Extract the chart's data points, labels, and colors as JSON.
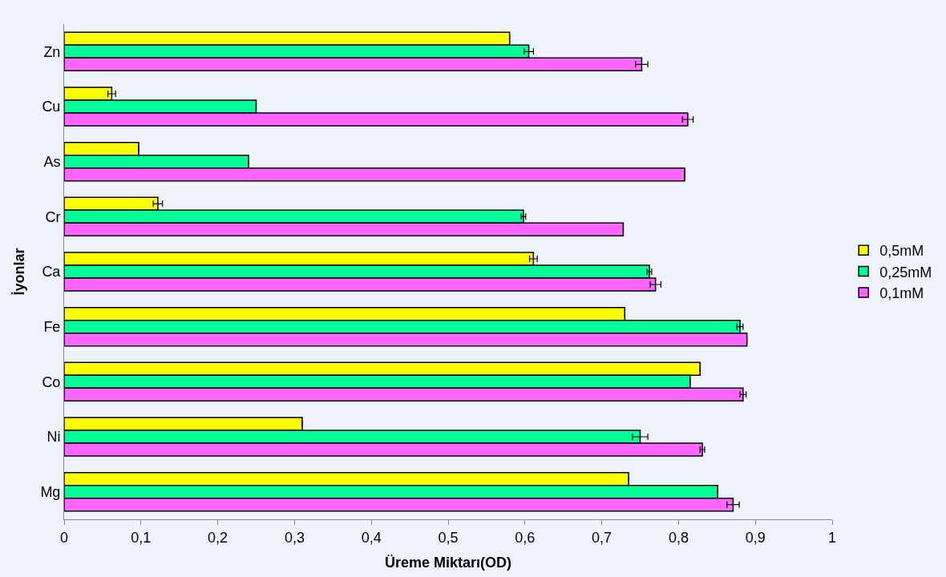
{
  "chart_data": {
    "type": "bar",
    "orientation": "horizontal",
    "xlabel": "Üreme Miktarı(OD)",
    "ylabel": "İyonlar",
    "categories": [
      "Zn",
      "Cu",
      "As",
      "Cr",
      "Ca",
      "Fe",
      "Co",
      "Ni",
      "Mg"
    ],
    "series": [
      {
        "name": "0,5mM",
        "color": "#ffff00",
        "values": [
          0.58,
          0.062,
          0.097,
          0.122,
          0.611,
          0.73,
          0.828,
          0.31,
          0.735
        ],
        "errors": [
          null,
          0.005,
          null,
          0.006,
          0.005,
          null,
          null,
          null,
          null
        ]
      },
      {
        "name": "0,25mM",
        "color": "#00ff99",
        "values": [
          0.605,
          0.25,
          0.24,
          0.598,
          0.762,
          0.88,
          0.815,
          0.75,
          0.851
        ],
        "errors": [
          0.006,
          null,
          null,
          0.003,
          0.003,
          0.004,
          null,
          0.01,
          null
        ]
      },
      {
        "name": "0,1mM",
        "color": "#ff66ff",
        "values": [
          0.752,
          0.812,
          0.808,
          0.728,
          0.77,
          0.889,
          0.884,
          0.831,
          0.871
        ],
        "errors": [
          0.008,
          0.007,
          null,
          null,
          0.007,
          null,
          0.004,
          0.003,
          0.008
        ]
      }
    ],
    "xlim": [
      0,
      1
    ],
    "xticks": [
      {
        "value": 0,
        "label": "0"
      },
      {
        "value": 0.1,
        "label": "0,1"
      },
      {
        "value": 0.2,
        "label": "0,2"
      },
      {
        "value": 0.3,
        "label": "0,3"
      },
      {
        "value": 0.4,
        "label": "0,4"
      },
      {
        "value": 0.5,
        "label": "0,5"
      },
      {
        "value": 0.6,
        "label": "0,6"
      },
      {
        "value": 0.7,
        "label": "0,7"
      },
      {
        "value": 0.8,
        "label": "0,8"
      },
      {
        "value": 0.9,
        "label": "0,9"
      },
      {
        "value": 1,
        "label": "1"
      }
    ],
    "grid": false,
    "legend": "right"
  }
}
